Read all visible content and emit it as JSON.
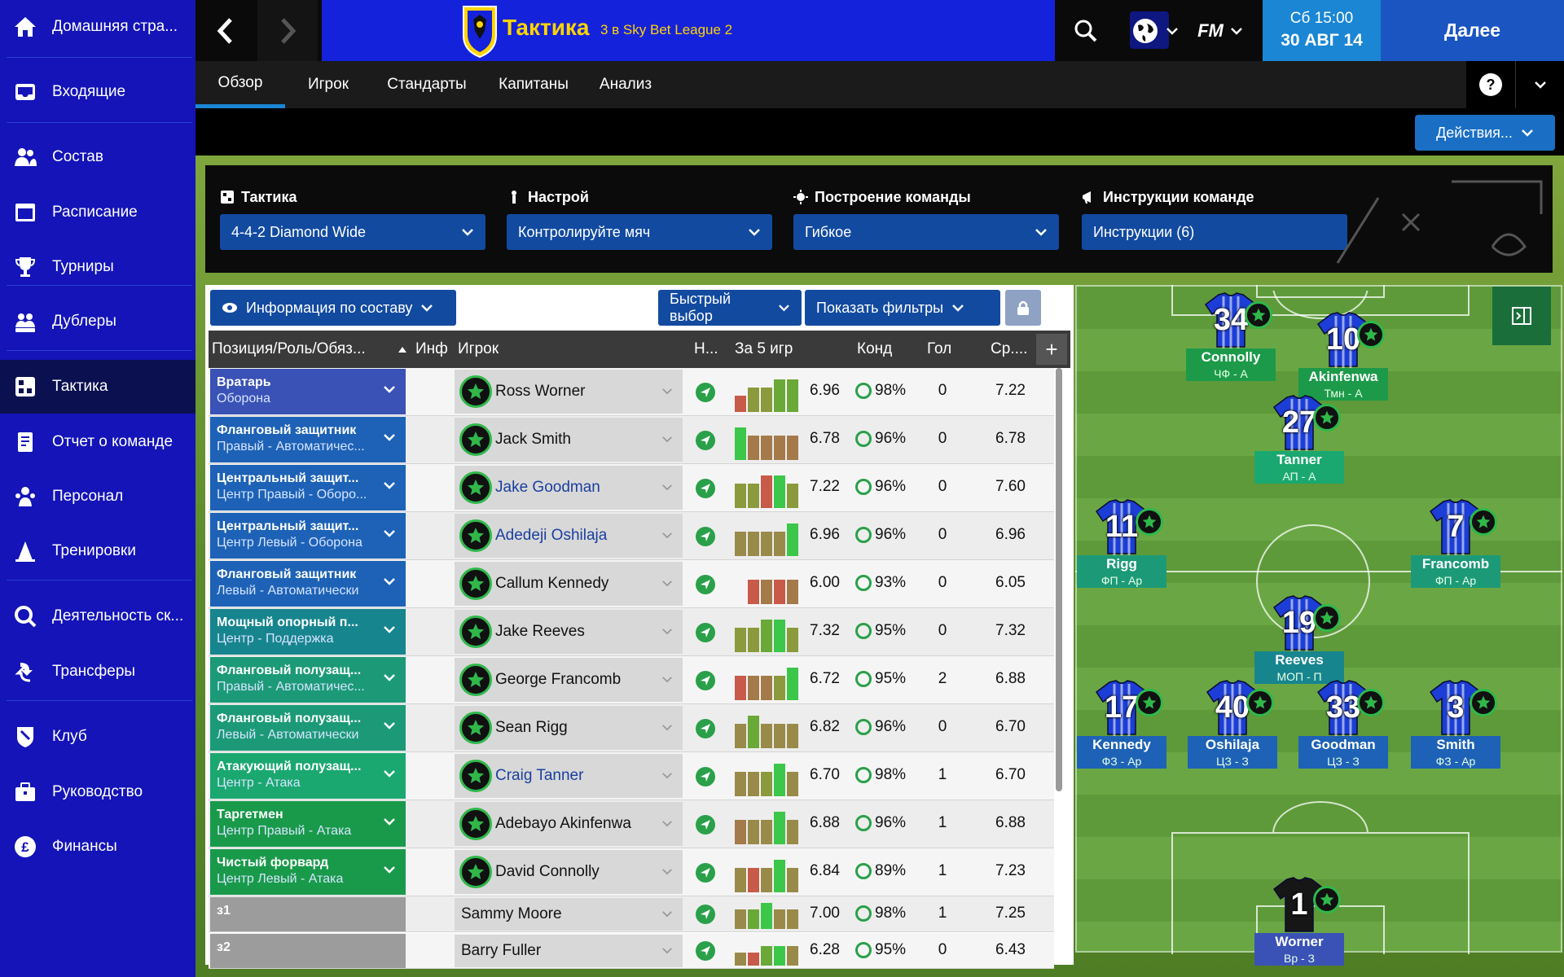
{
  "sidebar": {
    "items": [
      {
        "label": "Домашняя стра...",
        "icon": "home-icon"
      },
      {
        "label": "Входящие",
        "icon": "inbox-icon"
      },
      {
        "label": "Состав",
        "icon": "squad-icon"
      },
      {
        "label": "Расписание",
        "icon": "calendar-icon"
      },
      {
        "label": "Турниры",
        "icon": "trophy-icon"
      },
      {
        "label": "Дублеры",
        "icon": "reserves-icon"
      },
      {
        "label": "Тактика",
        "icon": "tactics-icon"
      },
      {
        "label": "Отчет о команде",
        "icon": "report-icon"
      },
      {
        "label": "Персонал",
        "icon": "staff-icon"
      },
      {
        "label": "Тренировки",
        "icon": "training-icon"
      },
      {
        "label": "Деятельность ск...",
        "icon": "search-icon"
      },
      {
        "label": "Трансферы",
        "icon": "transfer-icon"
      },
      {
        "label": "Клуб",
        "icon": "club-icon"
      },
      {
        "label": "Руководство",
        "icon": "briefcase-icon"
      },
      {
        "label": "Финансы",
        "icon": "finance-icon"
      }
    ]
  },
  "header": {
    "title": "Тактика",
    "subtitle": "3 в Sky Bet League 2",
    "date_time": "Сб 15:00",
    "date_day": "30 АВГ 14",
    "next_label": "Далее",
    "fm_label": "FM"
  },
  "tabs": [
    "Обзор",
    "Игрок",
    "Стандарты",
    "Капитаны",
    "Анализ"
  ],
  "actions_label": "Действия...",
  "tactic_panel": {
    "tactic_label": "Тактика",
    "tactic_value": "4-4-2 Diamond Wide",
    "mentality_label": "Настрой",
    "mentality_value": "Контролируйте мяч",
    "shape_label": "Построение команды",
    "shape_value": "Гибкое",
    "instructions_label": "Инструкции команде",
    "instructions_value": "Инструкции (6)"
  },
  "squad_tools": {
    "info_label": "Информация по составу",
    "quick_pick_label": "Быстрый выбор",
    "filters_label": "Показать фильтры"
  },
  "table": {
    "headers": {
      "position": "Позиция/Роль/Обяз...",
      "info": "Инф",
      "player": "Игрок",
      "status": "Н...",
      "form": "За 5 игр",
      "condition": "Конд",
      "goals": "Гол",
      "average": "Ср...."
    },
    "rows": [
      {
        "pos": "Вратарь",
        "role": "Оборона",
        "color": "#3a52b6",
        "player": "Ross Worner",
        "blue": false,
        "badge": true,
        "rating": "6.96",
        "cond": "98%",
        "goals": "0",
        "avg": "7.22",
        "form": [
          2,
          3,
          3,
          4,
          4
        ],
        "fcol": [
          "#c85a4a",
          "#8a9a3c",
          "#8a9a3c",
          "#6aa838",
          "#6aa838"
        ]
      },
      {
        "pos": "Фланговый защитник",
        "role": "Правый - Автоматичес...",
        "color": "#1d62b6",
        "player": "Jack Smith",
        "blue": false,
        "badge": true,
        "rating": "6.78",
        "cond": "96%",
        "goals": "0",
        "avg": "6.78",
        "form": [
          4,
          3,
          3,
          3,
          3
        ],
        "fcol": [
          "#3cc64a",
          "#a47a4a",
          "#a47a4a",
          "#a47a4a",
          "#a47a4a"
        ]
      },
      {
        "pos": "Центральный защит...",
        "role": "Центр Правый - Оборо...",
        "color": "#1d62b6",
        "player": "Jake Goodman",
        "blue": true,
        "badge": true,
        "rating": "7.22",
        "cond": "96%",
        "goals": "0",
        "avg": "7.60",
        "form": [
          3,
          3,
          4,
          4,
          3
        ],
        "fcol": [
          "#8a9a3c",
          "#8a9a3c",
          "#c85a4a",
          "#3cc64a",
          "#8a9a3c"
        ]
      },
      {
        "pos": "Центральный защит...",
        "role": "Центр Левый - Оборона",
        "color": "#1d62b6",
        "player": "Adedeji Oshilaja",
        "blue": true,
        "badge": true,
        "rating": "6.96",
        "cond": "96%",
        "goals": "0",
        "avg": "6.96",
        "form": [
          3,
          3,
          3,
          3,
          4
        ],
        "fcol": [
          "#9a8a4a",
          "#9a8a4a",
          "#9a8a4a",
          "#9a8a4a",
          "#3cc64a"
        ]
      },
      {
        "pos": "Фланговый защитник",
        "role": "Левый - Автоматически",
        "color": "#1d62b6",
        "player": "Callum Kennedy",
        "blue": false,
        "badge": true,
        "rating": "6.00",
        "cond": "93%",
        "goals": "0",
        "avg": "6.05",
        "form": [
          0,
          3,
          3,
          3,
          3
        ],
        "fcol": [
          "#c85a4a",
          "#c85a4a",
          "#a47a4a",
          "#c85a4a",
          "#a47a4a"
        ]
      },
      {
        "pos": "Мощный опорный п...",
        "role": "Центр - Поддержка",
        "color": "#17858e",
        "player": "Jake Reeves",
        "blue": false,
        "badge": true,
        "rating": "7.32",
        "cond": "95%",
        "goals": "0",
        "avg": "7.32",
        "form": [
          3,
          3,
          4,
          4,
          3
        ],
        "fcol": [
          "#8a9a3c",
          "#8a9a3c",
          "#6aa838",
          "#3cc64a",
          "#8a9a3c"
        ]
      },
      {
        "pos": "Фланговый полузащ...",
        "role": "Правый - Автоматичес...",
        "color": "#1c9a78",
        "player": "George Francomb",
        "blue": false,
        "badge": true,
        "rating": "6.72",
        "cond": "95%",
        "goals": "2",
        "avg": "6.88",
        "form": [
          3,
          3,
          3,
          3,
          4
        ],
        "fcol": [
          "#c85a4a",
          "#a47a4a",
          "#a47a4a",
          "#8a9a3c",
          "#3cc64a"
        ]
      },
      {
        "pos": "Фланговый полузащ...",
        "role": "Левый - Автоматически",
        "color": "#1c9a78",
        "player": "Sean Rigg",
        "blue": false,
        "badge": true,
        "rating": "6.82",
        "cond": "96%",
        "goals": "0",
        "avg": "6.70",
        "form": [
          3,
          4,
          3,
          3,
          3
        ],
        "fcol": [
          "#9a8a4a",
          "#6aa838",
          "#9a8a4a",
          "#9a8a4a",
          "#9a8a4a"
        ]
      },
      {
        "pos": "Атакующий полузащ...",
        "role": "Центр - Атака",
        "color": "#1aa870",
        "player": "Craig Tanner",
        "blue": true,
        "badge": true,
        "rating": "6.70",
        "cond": "98%",
        "goals": "1",
        "avg": "6.70",
        "form": [
          3,
          3,
          3,
          4,
          3
        ],
        "fcol": [
          "#9a8a4a",
          "#9a8a4a",
          "#8a9a3c",
          "#3cc64a",
          "#9a8a4a"
        ]
      },
      {
        "pos": "Таргетмен",
        "role": "Центр Правый - Атака",
        "color": "#199a4a",
        "player": "Adebayo Akinfenwa",
        "blue": false,
        "badge": true,
        "rating": "6.88",
        "cond": "96%",
        "goals": "1",
        "avg": "6.88",
        "form": [
          3,
          3,
          3,
          4,
          3
        ],
        "fcol": [
          "#a47a4a",
          "#9a8a4a",
          "#9a8a4a",
          "#3cc64a",
          "#9a8a4a"
        ]
      },
      {
        "pos": "Чистый форвард",
        "role": "Центр Левый - Атака",
        "color": "#199a4a",
        "player": "David Connolly",
        "blue": false,
        "badge": true,
        "rating": "6.84",
        "cond": "89%",
        "goals": "1",
        "avg": "7.23",
        "form": [
          3,
          3,
          3,
          4,
          3
        ],
        "fcol": [
          "#9a8a4a",
          "#c85a4a",
          "#9a8a4a",
          "#3cc64a",
          "#9a8a4a"
        ]
      },
      {
        "pos": "з1",
        "role": "",
        "color": "#9c9c9c",
        "player": "Sammy Moore",
        "blue": false,
        "badge": false,
        "rating": "7.00",
        "cond": "98%",
        "goals": "1",
        "avg": "7.25",
        "form": [
          3,
          3,
          4,
          3,
          3
        ],
        "fcol": [
          "#9a8a4a",
          "#6aa838",
          "#3cc64a",
          "#9a8a4a",
          "#9a8a4a"
        ]
      },
      {
        "pos": "з2",
        "role": "",
        "color": "#9c9c9c",
        "player": "Barry Fuller",
        "blue": false,
        "badge": false,
        "rating": "6.28",
        "cond": "95%",
        "goals": "0",
        "avg": "6.43",
        "form": [
          2,
          2,
          3,
          3,
          3
        ],
        "fcol": [
          "#9a8a4a",
          "#c85a4a",
          "#6aa838",
          "#3cc64a",
          "#9a8a4a"
        ]
      }
    ]
  },
  "pitch_players": [
    {
      "num": "34",
      "name": "Connolly",
      "role": "ЧФ - А",
      "label_color": "#1c9a4a",
      "kit": "blue"
    },
    {
      "num": "10",
      "name": "Akinfenwa",
      "role": "Тмн - А",
      "label_color": "#1c9a4a",
      "kit": "blue"
    },
    {
      "num": "27",
      "name": "Tanner",
      "role": "АП - А",
      "label_color": "#1aa870",
      "kit": "blue"
    },
    {
      "num": "11",
      "name": "Rigg",
      "role": "ФП - Ар",
      "label_color": "#1c9a78",
      "kit": "blue"
    },
    {
      "num": "7",
      "name": "Francomb",
      "role": "ФП - Ар",
      "label_color": "#1c9a78",
      "kit": "blue"
    },
    {
      "num": "19",
      "name": "Reeves",
      "role": "МОП - П",
      "label_color": "#17858e",
      "kit": "blue"
    },
    {
      "num": "17",
      "name": "Kennedy",
      "role": "ФЗ - Ар",
      "label_color": "#1d62b6",
      "kit": "blue"
    },
    {
      "num": "40",
      "name": "Oshilaja",
      "role": "ЦЗ - З",
      "label_color": "#1d62b6",
      "kit": "blue"
    },
    {
      "num": "33",
      "name": "Goodman",
      "role": "ЦЗ - З",
      "label_color": "#1d62b6",
      "kit": "blue"
    },
    {
      "num": "3",
      "name": "Smith",
      "role": "ФЗ - Ар",
      "label_color": "#1d62b6",
      "kit": "blue"
    },
    {
      "num": "1",
      "name": "Worner",
      "role": "Вр - З",
      "label_color": "#3a52b6",
      "kit": "black"
    }
  ],
  "colors": {
    "accent": "#1a86d4",
    "sidebar": "#1414b8",
    "title_text": "#ffd400"
  }
}
